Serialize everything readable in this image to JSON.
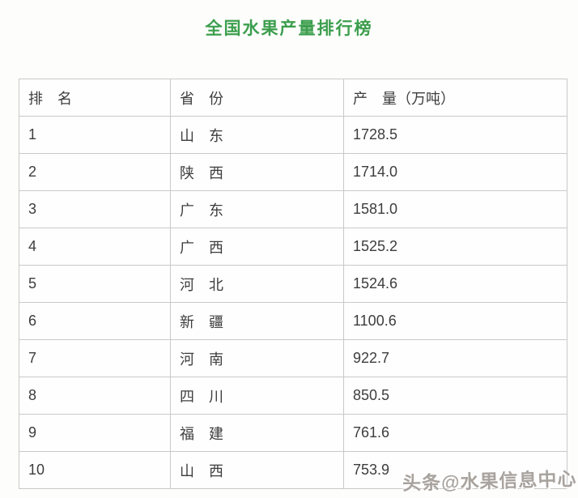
{
  "title": "全国水果产量排行榜",
  "colors": {
    "title_green": "#3c9e4d",
    "table_border": "#c9c9c9",
    "cell_text": "#3d3d3d",
    "watermark_grey": "#a8a39e"
  },
  "table": {
    "headers": {
      "rank": "排　名",
      "province": "省　份",
      "production": "产　量（万吨）"
    },
    "rows": [
      {
        "rank": "1",
        "province": "山　东",
        "production": "1728.5"
      },
      {
        "rank": "2",
        "province": "陕　西",
        "production": "1714.0"
      },
      {
        "rank": "3",
        "province": "广　东",
        "production": "1581.0"
      },
      {
        "rank": "4",
        "province": "广　西",
        "production": "1525.2"
      },
      {
        "rank": "5",
        "province": "河　北",
        "production": "1524.6"
      },
      {
        "rank": "6",
        "province": "新　疆",
        "production": "1100.6"
      },
      {
        "rank": "7",
        "province": "河　南",
        "production": "922.7"
      },
      {
        "rank": "8",
        "province": "四　川",
        "production": "850.5"
      },
      {
        "rank": "9",
        "province": "福　建",
        "production": "761.6"
      },
      {
        "rank": "10",
        "province": "山　西",
        "production": "753.9"
      }
    ]
  },
  "watermark": "头条@水果信息中心",
  "chart_data": {
    "type": "table",
    "title": "全国水果产量排行榜",
    "columns": [
      "排名",
      "省份",
      "产量（万吨）"
    ],
    "rows": [
      [
        1,
        "山东",
        1728.5
      ],
      [
        2,
        "陕西",
        1714.0
      ],
      [
        3,
        "广东",
        1581.0
      ],
      [
        4,
        "广西",
        1525.2
      ],
      [
        5,
        "河北",
        1524.6
      ],
      [
        6,
        "新疆",
        1100.6
      ],
      [
        7,
        "河南",
        922.7
      ],
      [
        8,
        "四川",
        850.5
      ],
      [
        9,
        "福建",
        761.6
      ],
      [
        10,
        "山西",
        753.9
      ]
    ],
    "units": "万吨",
    "notes": "ranking table, light grey 1px grid, white background"
  }
}
